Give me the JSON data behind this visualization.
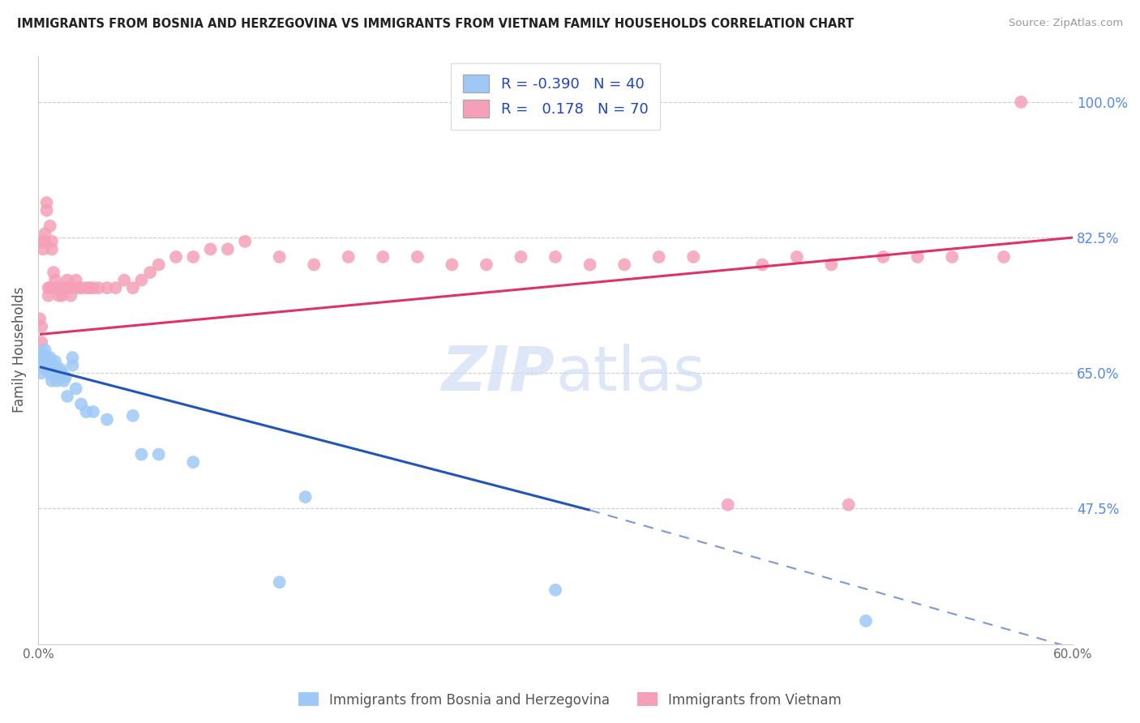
{
  "title": "IMMIGRANTS FROM BOSNIA AND HERZEGOVINA VS IMMIGRANTS FROM VIETNAM FAMILY HOUSEHOLDS CORRELATION CHART",
  "source": "Source: ZipAtlas.com",
  "ylabel": "Family Households",
  "color_bosnia": "#9ec8f5",
  "color_vietnam": "#f5a0b8",
  "color_line_bosnia": "#2255bb",
  "color_line_vietnam": "#dd3366",
  "color_grid": "#cccccc",
  "color_right_axis": "#5588ee",
  "legend_r_bosnia": "-0.390",
  "legend_n_bosnia": "40",
  "legend_r_vietnam": "0.178",
  "legend_n_vietnam": "70",
  "bottom_legend": [
    "Immigrants from Bosnia and Herzegovina",
    "Immigrants from Vietnam"
  ],
  "xlim": [
    0.0,
    0.6
  ],
  "ylim": [
    0.3,
    1.06
  ],
  "yticks": [
    0.475,
    0.65,
    0.825,
    1.0
  ],
  "ytick_labels": [
    "47.5%",
    "65.0%",
    "82.5%",
    "100.0%"
  ],
  "bosnia_x": [
    0.001,
    0.002,
    0.002,
    0.003,
    0.003,
    0.004,
    0.004,
    0.005,
    0.005,
    0.006,
    0.006,
    0.007,
    0.007,
    0.008,
    0.008,
    0.009,
    0.01,
    0.01,
    0.011,
    0.012,
    0.013,
    0.014,
    0.015,
    0.016,
    0.017,
    0.02,
    0.022,
    0.025,
    0.028,
    0.032,
    0.04,
    0.055,
    0.06,
    0.07,
    0.09,
    0.14,
    0.155,
    0.02,
    0.3,
    0.48
  ],
  "bosnia_y": [
    0.66,
    0.65,
    0.67,
    0.675,
    0.665,
    0.68,
    0.67,
    0.655,
    0.67,
    0.665,
    0.66,
    0.67,
    0.65,
    0.66,
    0.64,
    0.66,
    0.665,
    0.65,
    0.64,
    0.65,
    0.655,
    0.65,
    0.64,
    0.645,
    0.62,
    0.66,
    0.63,
    0.61,
    0.6,
    0.6,
    0.59,
    0.595,
    0.545,
    0.545,
    0.535,
    0.38,
    0.49,
    0.67,
    0.37,
    0.33
  ],
  "vietnam_x": [
    0.001,
    0.002,
    0.002,
    0.003,
    0.003,
    0.004,
    0.004,
    0.005,
    0.005,
    0.006,
    0.006,
    0.007,
    0.007,
    0.008,
    0.008,
    0.009,
    0.01,
    0.01,
    0.011,
    0.012,
    0.013,
    0.014,
    0.015,
    0.016,
    0.017,
    0.018,
    0.019,
    0.02,
    0.022,
    0.024,
    0.025,
    0.028,
    0.03,
    0.032,
    0.035,
    0.04,
    0.045,
    0.05,
    0.055,
    0.06,
    0.065,
    0.07,
    0.08,
    0.09,
    0.1,
    0.11,
    0.12,
    0.14,
    0.16,
    0.18,
    0.2,
    0.22,
    0.24,
    0.26,
    0.28,
    0.3,
    0.32,
    0.34,
    0.36,
    0.38,
    0.4,
    0.42,
    0.44,
    0.46,
    0.47,
    0.49,
    0.51,
    0.53,
    0.56,
    0.57
  ],
  "vietnam_y": [
    0.72,
    0.71,
    0.69,
    0.82,
    0.81,
    0.83,
    0.82,
    0.86,
    0.87,
    0.76,
    0.75,
    0.76,
    0.84,
    0.82,
    0.81,
    0.78,
    0.77,
    0.76,
    0.76,
    0.75,
    0.76,
    0.75,
    0.76,
    0.76,
    0.77,
    0.76,
    0.75,
    0.76,
    0.77,
    0.76,
    0.76,
    0.76,
    0.76,
    0.76,
    0.76,
    0.76,
    0.76,
    0.77,
    0.76,
    0.77,
    0.78,
    0.79,
    0.8,
    0.8,
    0.81,
    0.81,
    0.82,
    0.8,
    0.79,
    0.8,
    0.8,
    0.8,
    0.79,
    0.79,
    0.8,
    0.8,
    0.79,
    0.79,
    0.8,
    0.8,
    0.48,
    0.79,
    0.8,
    0.79,
    0.48,
    0.8,
    0.8,
    0.8,
    0.8,
    1.0
  ]
}
